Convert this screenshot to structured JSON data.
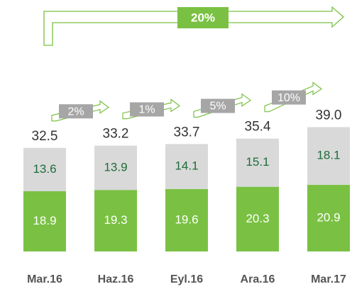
{
  "chart_data": {
    "type": "stacked_bar",
    "categories": [
      "Mar.16",
      "Haz.16",
      "Eyl.16",
      "Ara.16",
      "Mar.17"
    ],
    "series": [
      {
        "color": "#7ac143",
        "label_color": "#ffffff",
        "values": [
          18.9,
          19.3,
          19.6,
          20.3,
          20.9
        ]
      },
      {
        "color": "#d9d9d9",
        "label_color": "#1e6b3a",
        "values": [
          13.6,
          13.9,
          14.1,
          15.1,
          18.1
        ]
      }
    ],
    "totals": [
      32.5,
      33.2,
      33.7,
      35.4,
      39
    ],
    "total_labels": [
      "32.5",
      "33.2",
      "33.7",
      "35.4",
      "39.0"
    ],
    "growth_labels": [
      "2%",
      "1%",
      "5%",
      "10%"
    ],
    "overall_growth": "20%",
    "ylim": [
      0,
      50
    ]
  }
}
